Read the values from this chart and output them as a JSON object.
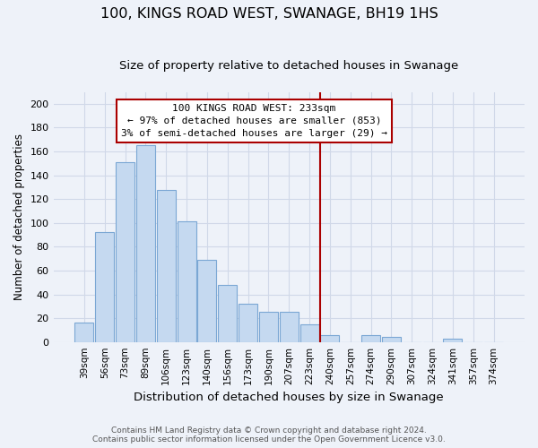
{
  "title": "100, KINGS ROAD WEST, SWANAGE, BH19 1HS",
  "subtitle": "Size of property relative to detached houses in Swanage",
  "xlabel": "Distribution of detached houses by size in Swanage",
  "ylabel": "Number of detached properties",
  "bar_labels": [
    "39sqm",
    "56sqm",
    "73sqm",
    "89sqm",
    "106sqm",
    "123sqm",
    "140sqm",
    "156sqm",
    "173sqm",
    "190sqm",
    "207sqm",
    "223sqm",
    "240sqm",
    "257sqm",
    "274sqm",
    "290sqm",
    "307sqm",
    "324sqm",
    "341sqm",
    "357sqm",
    "374sqm"
  ],
  "bar_values": [
    16,
    92,
    151,
    165,
    128,
    101,
    69,
    48,
    32,
    25,
    25,
    15,
    6,
    0,
    6,
    4,
    0,
    0,
    3,
    0,
    0
  ],
  "bar_color": "#c5d9f0",
  "bar_edge_color": "#7ba7d4",
  "ylim": [
    0,
    210
  ],
  "yticks": [
    0,
    20,
    40,
    60,
    80,
    100,
    120,
    140,
    160,
    180,
    200
  ],
  "marker_line_color": "#aa0000",
  "annotation_line1": "100 KINGS ROAD WEST: 233sqm",
  "annotation_line2": "← 97% of detached houses are smaller (853)",
  "annotation_line3": "3% of semi-detached houses are larger (29) →",
  "footer1": "Contains HM Land Registry data © Crown copyright and database right 2024.",
  "footer2": "Contains public sector information licensed under the Open Government Licence v3.0.",
  "background_color": "#eef2f9",
  "grid_color": "#d0d8e8",
  "title_fontsize": 11.5,
  "subtitle_fontsize": 9.5,
  "xlabel_fontsize": 9.5,
  "ylabel_fontsize": 8.5,
  "tick_fontsize": 7.5,
  "ytick_fontsize": 8,
  "annotation_fontsize": 8,
  "footer_fontsize": 6.5
}
